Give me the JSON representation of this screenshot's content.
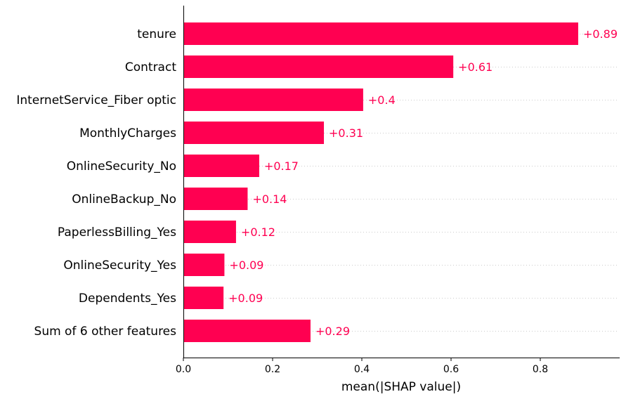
{
  "chart_data": {
    "type": "bar",
    "orientation": "horizontal",
    "title": "",
    "xlabel": "mean(|SHAP value|)",
    "ylabel": "",
    "xlim": [
      0,
      0.975
    ],
    "xticks": [
      0.0,
      0.2,
      0.4,
      0.6,
      0.8
    ],
    "xtick_labels": [
      "0.0",
      "0.2",
      "0.4",
      "0.6",
      "0.8"
    ],
    "categories": [
      "tenure",
      "Contract",
      "InternetService_Fiber optic",
      "MonthlyCharges",
      "OnlineSecurity_No",
      "OnlineBackup_No",
      "PaperlessBilling_Yes",
      "OnlineSecurity_Yes",
      "Dependents_Yes",
      "Sum of 6 other features"
    ],
    "values": [
      0.885,
      0.605,
      0.403,
      0.315,
      0.17,
      0.144,
      0.118,
      0.092,
      0.09,
      0.285
    ],
    "value_labels": [
      "+0.89",
      "+0.61",
      "+0.4",
      "+0.31",
      "+0.17",
      "+0.14",
      "+0.12",
      "+0.09",
      "+0.09",
      "+0.29"
    ],
    "grid": "dotted row guides",
    "colors": {
      "bar": "#ff0051",
      "value_label": "#ff0051",
      "axis": "#000000",
      "guide": "#cccccc"
    }
  }
}
